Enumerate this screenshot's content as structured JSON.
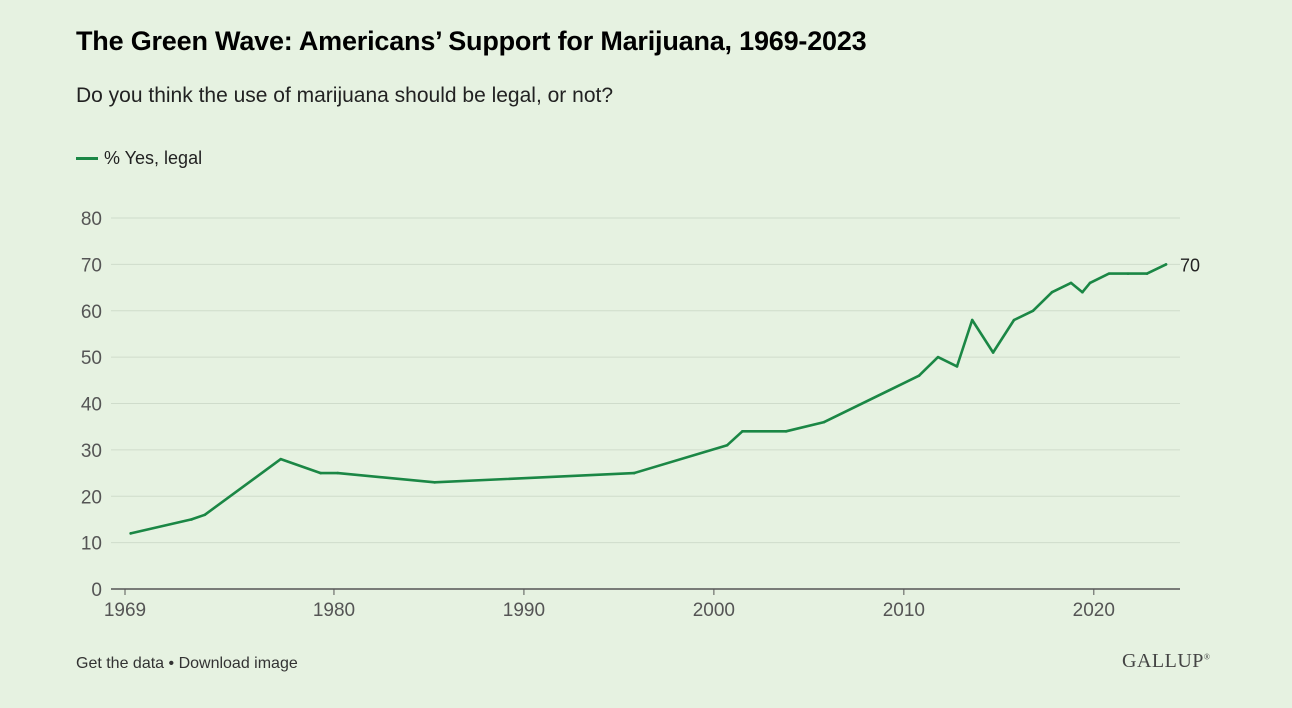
{
  "header": {
    "title": "The Green Wave: Americans’ Support for Marijuana, 1969-2023",
    "subtitle": "Do you think the use of marijuana should be legal, or not?"
  },
  "legend": {
    "label": "% Yes, legal"
  },
  "footer": {
    "get_data": "Get the data",
    "separator": " • ",
    "download": "Download image",
    "brand": "GALLUP"
  },
  "colors": {
    "line": "#1b8745",
    "grid": "#cfdccb",
    "axis": "#555555",
    "background": "#e6f2e1"
  },
  "chart_data": {
    "type": "line",
    "title": "The Green Wave: Americans’ Support for Marijuana, 1969-2023",
    "xlabel": "",
    "ylabel": "",
    "ylim": [
      0,
      80
    ],
    "xlim": [
      1969,
      2023.8
    ],
    "yticks": [
      0,
      10,
      20,
      30,
      40,
      50,
      60,
      70,
      80
    ],
    "xticks": [
      {
        "value": 1969,
        "label": "1969"
      },
      {
        "value": 1980,
        "label": "1980"
      },
      {
        "value": 1990,
        "label": "1990"
      },
      {
        "value": 2000,
        "label": "2000"
      },
      {
        "value": 2010,
        "label": "2010"
      },
      {
        "value": 2020,
        "label": "2020"
      }
    ],
    "grid": true,
    "legend": "top-left",
    "series": [
      {
        "name": "% Yes, legal",
        "x": [
          1969.3,
          1972.5,
          1973.2,
          1977.2,
          1979.3,
          1980.2,
          1985.3,
          1995.8,
          2000.7,
          2001.5,
          2003.8,
          2005.8,
          2010.8,
          2011.8,
          2012.8,
          2013.6,
          2014.7,
          2015.8,
          2016.8,
          2017.8,
          2018.8,
          2019.4,
          2019.8,
          2020.8,
          2021.8,
          2022.8,
          2023.8
        ],
        "y": [
          12,
          15,
          16,
          28,
          25,
          25,
          23,
          25,
          31,
          34,
          34,
          36,
          46,
          50,
          48,
          58,
          51,
          58,
          60,
          64,
          66,
          64,
          66,
          68,
          68,
          68,
          70
        ]
      }
    ],
    "end_label": "70"
  }
}
